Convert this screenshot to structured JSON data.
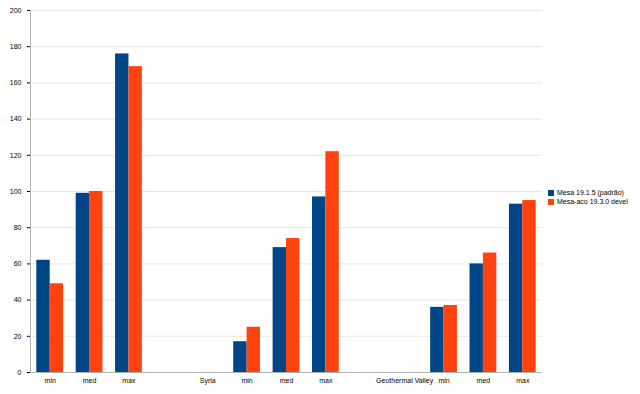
{
  "chart_data": {
    "type": "bar",
    "categories": [
      "min",
      "med",
      "max",
      null,
      "Syria",
      "min",
      "med",
      "max",
      null,
      "Geothermal Valley",
      "min",
      "med",
      "max"
    ],
    "series": [
      {
        "name": "Mesa 19.1.5 (padrão)",
        "color": "#004586",
        "values": [
          62,
          99,
          176,
          null,
          null,
          17,
          69,
          97,
          null,
          null,
          36,
          60,
          93
        ]
      },
      {
        "name": "Mesa-aco 19.3.0 devel",
        "color": "#ff420e",
        "values": [
          49,
          100,
          169,
          null,
          null,
          25,
          74,
          122,
          null,
          null,
          37,
          66,
          95
        ]
      }
    ],
    "ylim": [
      0,
      200
    ],
    "yticks": [
      0,
      20,
      40,
      60,
      80,
      100,
      120,
      140,
      160,
      180,
      200
    ],
    "grid": true,
    "legend": "right"
  }
}
